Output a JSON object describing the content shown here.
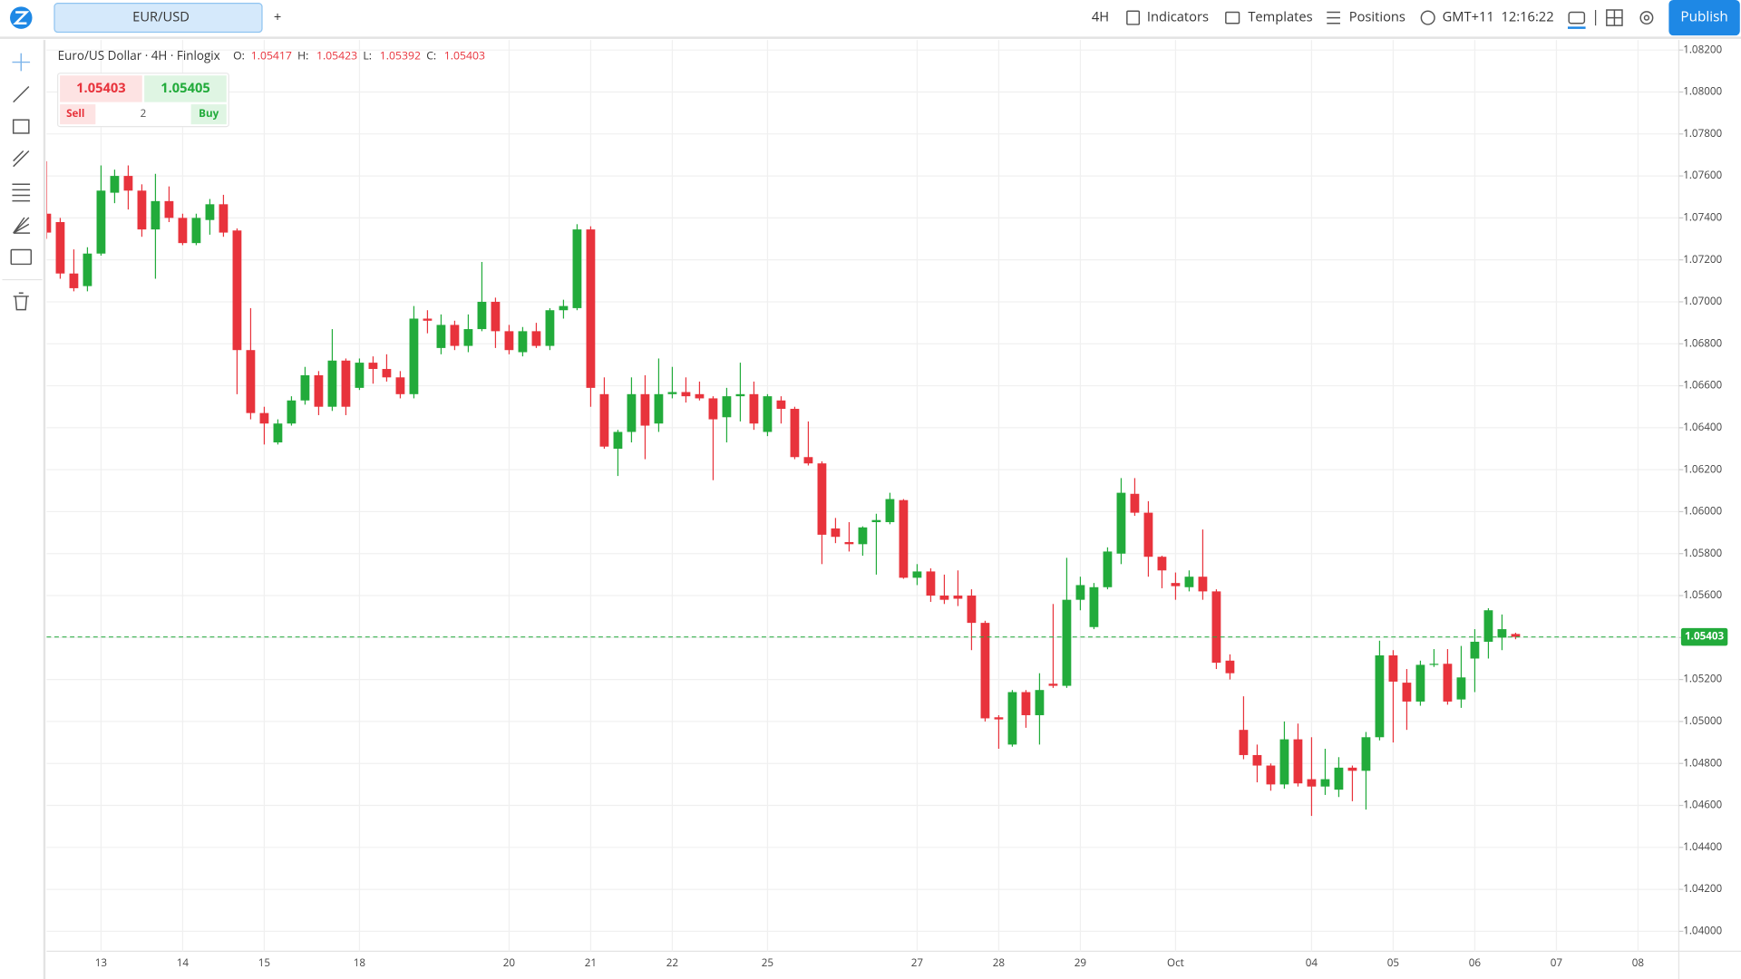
{
  "ui": {
    "tab": "EUR/USD",
    "add_tab": "+",
    "interval": "4H",
    "indicators": "Indicators",
    "templates": "Templates",
    "positions": "Positions",
    "timezone": "GMT+11",
    "time": "12:16:22",
    "publish": "Publish",
    "legend": {
      "name": "Euro/US Dollar · 4H · Finlogix",
      "o": "O:",
      "h": "H:",
      "l": "L:",
      "c": "C:"
    },
    "trade": {
      "sell_price": "1.05403",
      "buy_price": "1.05405",
      "sell": "Sell",
      "buy": "Buy",
      "quantity": "2"
    }
  },
  "chart_data": {
    "type": "candlestick",
    "up_color": "#22ab3b",
    "down_color": "#e8333c",
    "grid": true,
    "categories": [
      null,
      null,
      null,
      null,
      "13",
      null,
      null,
      null,
      null,
      null,
      "14",
      null,
      null,
      null,
      null,
      null,
      "15",
      null,
      null,
      null,
      null,
      null,
      null,
      "18",
      null,
      null,
      null,
      null,
      null,
      null,
      null,
      null,
      null,
      null,
      "20",
      null,
      null,
      null,
      null,
      null,
      "21",
      null,
      null,
      null,
      null,
      null,
      "22",
      null,
      null,
      null,
      null,
      null,
      null,
      "25",
      null,
      null,
      null,
      null,
      null,
      null,
      null,
      null,
      null,
      null,
      "27",
      null,
      null,
      null,
      null,
      null,
      "28",
      null,
      null,
      null,
      null,
      null,
      "29",
      null,
      null,
      null,
      null,
      null,
      null,
      "Oct",
      null,
      null,
      null,
      null,
      null,
      null,
      null,
      null,
      null,
      "04",
      null,
      null,
      null,
      null,
      null,
      "05",
      null,
      null,
      null,
      null,
      null,
      "06",
      null,
      null,
      null,
      null,
      null,
      "07",
      null,
      null,
      null,
      null,
      null,
      "08",
      null,
      null
    ],
    "open": [
      1.0742,
      1.0738,
      1.07135,
      1.07075,
      1.0723,
      1.0752,
      1.076,
      1.0753,
      1.07345,
      1.0748,
      1.074,
      1.0728,
      1.0739,
      1.07465,
      1.0734,
      1.0677,
      1.0647,
      1.0633,
      1.0642,
      1.0653,
      1.0665,
      1.065,
      1.0672,
      1.0659,
      1.0671,
      1.0668,
      1.0664,
      1.0656,
      1.0692,
      1.0678,
      1.0689,
      1.0679,
      1.0687,
      1.07,
      1.0686,
      1.0676,
      1.0686,
      1.0679,
      1.0696,
      1.0697,
      1.07345,
      1.0656,
      1.063,
      1.0638,
      1.0656,
      1.0642,
      1.0656,
      1.0657,
      1.0656,
      1.0654,
      1.0645,
      1.0655,
      1.0656,
      1.0638,
      1.0653,
      1.0649,
      1.0626,
      1.0623,
      1.0592,
      1.05855,
      1.05845,
      1.0595,
      1.0595,
      1.06055,
      1.05685,
      1.05715,
      1.056,
      1.056,
      1.056,
      1.0547,
      1.0502,
      1.0489,
      1.0514,
      1.0503,
      1.0518,
      1.0517,
      1.0558,
      1.0545,
      1.0564,
      1.058,
      1.06085,
      1.05995,
      1.05785,
      1.0566,
      1.0564,
      1.0569,
      1.0562,
      1.0529,
      1.0496,
      1.0484,
      1.0479,
      1.047,
      1.04915,
      1.04725,
      1.0469,
      1.04675,
      1.0478,
      1.04765,
      1.04925,
      1.05315,
      1.05185,
      1.05095,
      1.0527,
      1.05275,
      1.05105,
      1.053,
      1.0538,
      1.054,
      1.05417,
      null,
      null,
      null,
      null,
      null,
      null,
      null,
      null,
      null,
      null,
      null
    ],
    "high": [
      1.0767,
      1.074,
      1.0725,
      1.0726,
      1.0765,
      1.0763,
      1.0765,
      1.0756,
      1.0761,
      1.0755,
      1.0742,
      1.0742,
      1.0749,
      1.0751,
      1.0735,
      1.0697,
      1.065,
      1.0644,
      1.0655,
      1.0669,
      1.0667,
      1.0687,
      1.0673,
      1.0673,
      1.0674,
      1.0675,
      1.0667,
      1.0698,
      1.0696,
      1.0694,
      1.0691,
      1.0694,
      1.0719,
      1.0702,
      1.0689,
      1.0688,
      1.069,
      1.0697,
      1.0701,
      1.0737,
      1.0736,
      1.0664,
      1.0639,
      1.0664,
      1.0665,
      1.0673,
      1.0669,
      1.0664,
      1.0662,
      1.0655,
      1.0659,
      1.0671,
      1.0662,
      1.0656,
      1.0655,
      1.065,
      1.0643,
      1.0624,
      1.0597,
      1.0595,
      1.0593,
      1.0599,
      1.0609,
      1.0606,
      1.0575,
      1.0573,
      1.057,
      1.0572,
      1.0563,
      1.0548,
      1.0503,
      1.0515,
      1.0515,
      1.0523,
      1.0556,
      1.0578,
      1.0569,
      1.0566,
      1.0583,
      1.0616,
      1.0616,
      1.0605,
      1.0579,
      1.0571,
      1.0572,
      1.05915,
      1.0563,
      1.0532,
      1.0512,
      1.0489,
      1.048,
      1.05,
      1.0499,
      1.04925,
      1.0487,
      1.0483,
      1.0479,
      1.0495,
      1.05385,
      1.0534,
      1.0525,
      1.0529,
      1.05345,
      1.05345,
      1.0536,
      1.0544,
      1.0554,
      1.0551,
      1.05423,
      null,
      null,
      null,
      null,
      null,
      null,
      null,
      null,
      null,
      null,
      null
    ],
    "low": [
      1.073,
      1.0711,
      1.0705,
      1.0705,
      1.0722,
      1.0747,
      1.0744,
      1.0731,
      1.0711,
      1.0738,
      1.0727,
      1.0727,
      1.0732,
      1.0731,
      1.0656,
      1.0644,
      1.0632,
      1.0632,
      1.0641,
      1.0651,
      1.0646,
      1.0648,
      1.0646,
      1.0658,
      1.0661,
      1.0662,
      1.0654,
      1.0654,
      1.0685,
      1.0675,
      1.0677,
      1.0676,
      1.0686,
      1.0678,
      1.0675,
      1.0674,
      1.0678,
      1.0677,
      1.0692,
      1.0696,
      1.065,
      1.063,
      1.0617,
      1.0633,
      1.0625,
      1.0638,
      1.0654,
      1.0652,
      1.0653,
      1.0615,
      1.0633,
      1.0643,
      1.0639,
      1.0636,
      1.0642,
      1.0625,
      1.0622,
      1.0575,
      1.0585,
      1.0581,
      1.0579,
      1.057,
      1.0594,
      1.0568,
      1.0565,
      1.0557,
      1.0556,
      1.0555,
      1.0534,
      1.05,
      1.0487,
      1.0488,
      1.0497,
      1.0489,
      1.0516,
      1.0516,
      1.0553,
      1.0544,
      1.0563,
      1.0575,
      1.0598,
      1.0569,
      1.05635,
      1.0558,
      1.0562,
      1.0558,
      1.0525,
      1.052,
      1.0482,
      1.0471,
      1.0467,
      1.0468,
      1.0469,
      1.0455,
      1.0465,
      1.0464,
      1.0462,
      1.0458,
      1.0491,
      1.049,
      1.0496,
      1.05075,
      1.0526,
      1.0508,
      1.05065,
      1.0514,
      1.053,
      1.0534,
      1.05392,
      null,
      null,
      null,
      null,
      null,
      null,
      null,
      null,
      null,
      null,
      null
    ],
    "close": [
      1.0733,
      1.07135,
      1.07065,
      1.0723,
      1.0753,
      1.076,
      1.0753,
      1.07345,
      1.0748,
      1.074,
      1.0728,
      1.074,
      1.07465,
      1.0733,
      1.0677,
      1.0647,
      1.0642,
      1.0642,
      1.0653,
      1.0665,
      1.065,
      1.0672,
      1.065,
      1.0671,
      1.0668,
      1.0664,
      1.0656,
      1.0692,
      1.0691,
      1.0689,
      1.0679,
      1.0687,
      1.07,
      1.0686,
      1.0677,
      1.0686,
      1.0679,
      1.0696,
      1.0698,
      1.07345,
      1.0659,
      1.0631,
      1.0638,
      1.0656,
      1.0641,
      1.0656,
      1.0657,
      1.0655,
      1.0654,
      1.0644,
      1.0655,
      1.0656,
      1.0642,
      1.0655,
      1.0649,
      1.0626,
      1.0623,
      1.0589,
      1.0588,
      1.05845,
      1.05925,
      1.0596,
      1.0606,
      1.05685,
      1.05715,
      1.056,
      1.0558,
      1.05585,
      1.0547,
      1.05015,
      1.0501,
      1.0514,
      1.0503,
      1.0515,
      1.0517,
      1.0558,
      1.0565,
      1.0564,
      1.0581,
      1.0609,
      1.05995,
      1.05785,
      1.0572,
      1.05645,
      1.0569,
      1.0562,
      1.0528,
      1.0523,
      1.0484,
      1.0479,
      1.047,
      1.04915,
      1.04705,
      1.0469,
      1.04725,
      1.0478,
      1.04765,
      1.04925,
      1.05315,
      1.0519,
      1.05095,
      1.0527,
      1.05275,
      1.05095,
      1.0521,
      1.0538,
      1.0553,
      1.0544,
      1.05403,
      null,
      null,
      null,
      null,
      null,
      null,
      null,
      null,
      null,
      null,
      null
    ],
    "ylim": [
      1.03905,
      1.08248
    ],
    "yticks": [
      {
        "value": 1.04,
        "label": "1.04000"
      },
      {
        "value": 1.042,
        "label": "1.04200"
      },
      {
        "value": 1.044,
        "label": "1.04400"
      },
      {
        "value": 1.046,
        "label": "1.04600"
      },
      {
        "value": 1.048,
        "label": "1.04800"
      },
      {
        "value": 1.05,
        "label": "1.05000"
      },
      {
        "value": 1.052,
        "label": "1.05200"
      },
      {
        "value": 1.054,
        "label": "1.05400"
      },
      {
        "value": 1.056,
        "label": "1.05600"
      },
      {
        "value": 1.058,
        "label": "1.05800"
      },
      {
        "value": 1.06,
        "label": "1.06000"
      },
      {
        "value": 1.062,
        "label": "1.06200"
      },
      {
        "value": 1.064,
        "label": "1.06400"
      },
      {
        "value": 1.066,
        "label": "1.06600"
      },
      {
        "value": 1.068,
        "label": "1.06800"
      },
      {
        "value": 1.07,
        "label": "1.07000"
      },
      {
        "value": 1.072,
        "label": "1.07200"
      },
      {
        "value": 1.074,
        "label": "1.07400"
      },
      {
        "value": 1.076,
        "label": "1.07600"
      },
      {
        "value": 1.078,
        "label": "1.07800"
      },
      {
        "value": 1.08,
        "label": "1.08000"
      },
      {
        "value": 1.082,
        "label": "1.08200"
      }
    ]
  }
}
